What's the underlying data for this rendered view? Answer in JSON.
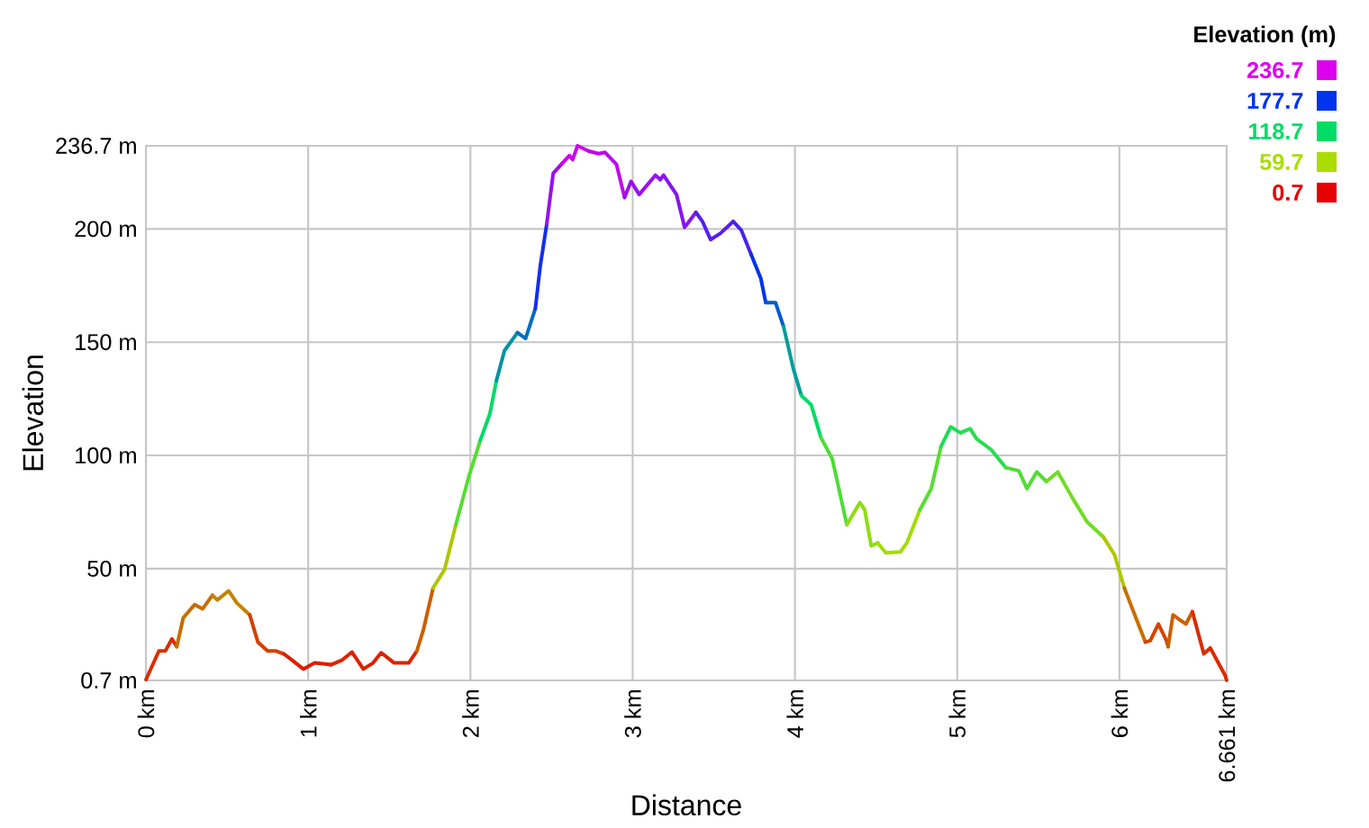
{
  "chart_data": {
    "type": "line",
    "xlabel": "Distance",
    "ylabel": "Elevation",
    "clabel": "Elevation (m)",
    "annotations": [
      "236.7",
      "177.7",
      "118.7",
      "59.7",
      "0.7"
    ],
    "xlim": [
      0,
      6.661
    ],
    "xticks": [
      {
        "value": 0,
        "label": "0 km"
      },
      {
        "value": 1,
        "label": "1 km"
      },
      {
        "value": 2,
        "label": "2 km"
      },
      {
        "value": 3,
        "label": "3 km"
      },
      {
        "value": 4,
        "label": "4 km"
      },
      {
        "value": 5,
        "label": "5 km"
      },
      {
        "value": 6,
        "label": "6 km"
      },
      {
        "value": 6.661,
        "label": "6.661 km"
      }
    ],
    "ylim": [
      0.7,
      236.7
    ],
    "yticks": [
      {
        "value": 0.7,
        "label": "0.7 m"
      },
      {
        "value": 50,
        "label": "50 m"
      },
      {
        "value": 100,
        "label": "100 m"
      },
      {
        "value": 150,
        "label": "150 m"
      },
      {
        "value": 200,
        "label": "200 m"
      },
      {
        "value": 236.7,
        "label": "236.7 m"
      }
    ],
    "grid": true,
    "line_style": "solid",
    "series": [
      {
        "x": [
          0,
          0.08,
          0.12,
          0.16,
          0.19
        ],
        "values": [
          1,
          13.7,
          13.7,
          19,
          15.6
        ]
      },
      {
        "x": [
          0.19,
          0.23,
          0.3,
          0.35,
          0.41
        ],
        "values": [
          15.6,
          28.3,
          34.1,
          32.3,
          38.3
        ]
      },
      {
        "x": [
          0.41,
          0.44,
          0.51,
          0.56,
          0.64
        ],
        "values": [
          38.3,
          36.2,
          40.2,
          34.9,
          29.6
        ]
      },
      {
        "x": [
          0.64,
          0.69,
          0.75,
          0.8,
          0.85
        ],
        "values": [
          29.6,
          17.6,
          13.7,
          13.7,
          12.4
        ]
      },
      {
        "x": [
          0.85,
          0.9,
          0.97,
          1.04,
          1.14
        ],
        "values": [
          12.4,
          9.7,
          5.7,
          8.4,
          7.6
        ]
      },
      {
        "x": [
          1.14,
          1.21,
          1.27,
          1.34,
          1.4,
          1.45,
          1.53,
          1.62,
          1.67
        ],
        "values": [
          7.6,
          9.7,
          13.2,
          5.7,
          8.4,
          12.9,
          8.4,
          8.4,
          13.7
        ]
      },
      {
        "x": [
          1.67,
          1.71,
          1.77
        ],
        "values": [
          13.7,
          23,
          41.5
        ]
      },
      {
        "x": [
          1.77,
          1.84,
          1.91
        ],
        "values": [
          41.5,
          49.5,
          69.4
        ]
      },
      {
        "x": [
          1.91,
          1.99,
          2.06
        ],
        "values": [
          69.4,
          90.6,
          106.5
        ]
      },
      {
        "x": [
          2.06,
          2.12,
          2.16
        ],
        "values": [
          106.5,
          118.4,
          133
        ]
      },
      {
        "x": [
          2.16,
          2.21,
          2.29
        ],
        "values": [
          133,
          146.3,
          154.2
        ]
      },
      {
        "x": [
          2.29,
          2.34,
          2.4
        ],
        "values": [
          154.2,
          151.6,
          164.8
        ]
      },
      {
        "x": [
          2.4,
          2.43,
          2.47
        ],
        "values": [
          164.8,
          183.4,
          202
        ]
      },
      {
        "x": [
          2.47,
          2.51,
          2.56
        ],
        "values": [
          202,
          224.5,
          228.5
        ]
      },
      {
        "x": [
          2.56,
          2.61,
          2.63,
          2.66,
          2.73
        ],
        "values": [
          228.5,
          232.4,
          230.6,
          236.7,
          234.3
        ]
      },
      {
        "x": [
          2.73,
          2.79,
          2.83,
          2.9,
          2.95
        ],
        "values": [
          234.3,
          233.2,
          233.8,
          228.5,
          213.9
        ]
      },
      {
        "x": [
          2.95,
          2.99,
          3.04,
          3.14,
          3.17
        ],
        "values": [
          213.9,
          221,
          215.2,
          223.7,
          221.8
        ]
      },
      {
        "x": [
          3.17,
          3.19,
          3.27,
          3.32,
          3.39
        ],
        "values": [
          221.8,
          223.7,
          215.2,
          200.7,
          207.3
        ]
      },
      {
        "x": [
          3.39,
          3.43,
          3.48,
          3.54,
          3.62
        ],
        "values": [
          207.3,
          203.3,
          195.3,
          198,
          203.3
        ]
      },
      {
        "x": [
          3.62,
          3.67,
          3.73
        ],
        "values": [
          203.3,
          199.4,
          188.7
        ]
      },
      {
        "x": [
          3.73,
          3.79,
          3.82
        ],
        "values": [
          188.7,
          178.1,
          167.5
        ]
      },
      {
        "x": [
          3.82,
          3.88,
          3.93
        ],
        "values": [
          167.5,
          167.5,
          156.9
        ]
      },
      {
        "x": [
          3.93,
          3.99,
          4.04
        ],
        "values": [
          156.9,
          138.3,
          126.4
        ]
      },
      {
        "x": [
          4.04,
          4.1,
          4.16
        ],
        "values": [
          126.4,
          122.4,
          107.9
        ]
      },
      {
        "x": [
          4.16,
          4.23,
          4.32
        ],
        "values": [
          107.9,
          98.5,
          69.4
        ]
      },
      {
        "x": [
          4.32,
          4.4,
          4.43,
          4.47,
          4.51
        ],
        "values": [
          69.4,
          79.2,
          76,
          60.1,
          61.4
        ]
      },
      {
        "x": [
          4.51,
          4.56,
          4.65,
          4.69,
          4.77
        ],
        "values": [
          61.4,
          57,
          57.4,
          61.4,
          76
        ]
      },
      {
        "x": [
          4.77,
          4.84,
          4.9
        ],
        "values": [
          76,
          85.3,
          103.9
        ]
      },
      {
        "x": [
          4.9,
          4.96,
          5.02
        ],
        "values": [
          103.9,
          112.6,
          110
        ]
      },
      {
        "x": [
          5.02,
          5.08,
          5.12,
          5.21,
          5.3
        ],
        "values": [
          110,
          111.8,
          107.3,
          102.5,
          94.6
        ]
      },
      {
        "x": [
          5.3,
          5.38,
          5.43,
          5.49,
          5.55
        ],
        "values": [
          94.6,
          93.2,
          85.3,
          92.7,
          88.5
        ]
      },
      {
        "x": [
          5.55,
          5.62,
          5.71,
          5.8,
          5.9
        ],
        "values": [
          88.5,
          92.7,
          81.3,
          70.7,
          64.1
        ]
      },
      {
        "x": [
          5.9,
          5.97,
          6.03
        ],
        "values": [
          64.1,
          56.1,
          41.5
        ]
      },
      {
        "x": [
          6.03,
          6.08,
          6.16
        ],
        "values": [
          41.5,
          32.3,
          17.6
        ]
      },
      {
        "x": [
          6.16,
          6.19,
          6.24,
          6.29,
          6.3
        ],
        "values": [
          17.6,
          18.2,
          25.6,
          18.2,
          15.6
        ]
      },
      {
        "x": [
          6.3,
          6.33,
          6.38,
          6.41,
          6.45
        ],
        "values": [
          15.6,
          29.6,
          27,
          25.6,
          31
        ]
      },
      {
        "x": [
          6.45,
          6.52,
          6.56,
          6.65,
          6.661
        ],
        "values": [
          31,
          12.4,
          15,
          3.1,
          0.7
        ]
      }
    ]
  }
}
